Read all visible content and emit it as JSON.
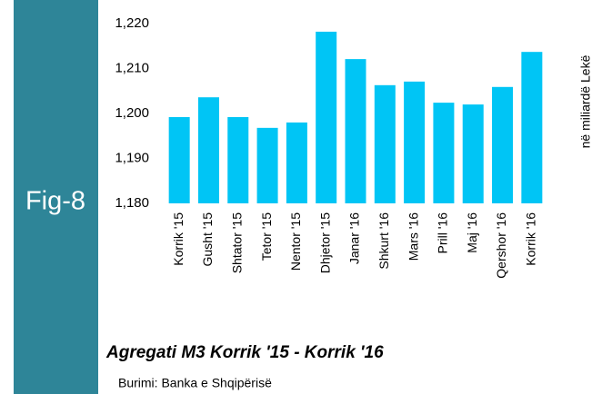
{
  "figure_label": "Fig-8",
  "chart_data": {
    "type": "bar",
    "title": "Agregati M3 Korrik '15 - Korrik '16",
    "source": "Burimi: Banka e Shqipërisë",
    "y_label": "në miliardë Lekë",
    "categories": [
      "Korrik '15",
      "Gusht '15",
      "Shtator '15",
      "Tetor '15",
      "Nentor '15",
      "Dhjetor '15",
      "Janar '16",
      "Shkurt '16",
      "Mars '16",
      "Prill '16",
      "Maj '16",
      "Qershor '16",
      "Korrik '16"
    ],
    "values": [
      1199.2,
      1203.6,
      1199.2,
      1196.8,
      1198,
      1218.2,
      1212.1,
      1206.3,
      1207.1,
      1202.4,
      1202,
      1205.9,
      1213.7
    ],
    "color": "#00c5f5",
    "ylim": [
      1180,
      1220
    ],
    "yticks": [
      {
        "value": 1180,
        "label": "1,180"
      },
      {
        "value": 1190,
        "label": "1,190"
      },
      {
        "value": 1200,
        "label": "1,200"
      },
      {
        "value": 1210,
        "label": "1,210"
      },
      {
        "value": 1220,
        "label": "1,220"
      }
    ],
    "grid": false
  }
}
